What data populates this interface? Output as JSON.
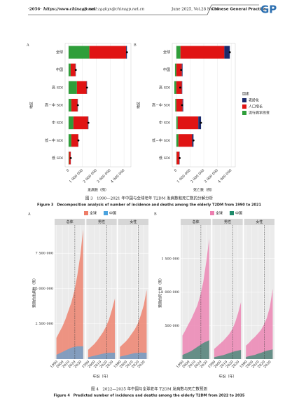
{
  "header": {
    "page": "·2056·",
    "website": "https://www.chinagp.net",
    "email": "E-mail:zgqkyx@chinagp.net.cn",
    "issue": "June 2025, Vol.28 No.16",
    "journal": "Chinese General Practice",
    "logo": "GP"
  },
  "figure3": {
    "caption_cn": "图 3　1990—2021 年中国与全球老年 T2DM 发病数和死亡数的分解分析",
    "caption_en": "Figure 3　Decomposition analysis of number of incidence and deaths among the elderly T2DM from 1990 to 2021"
  },
  "figure4": {
    "caption_cn": "图 4　2022—2035 年中国与全球老年 T2DM 发病数与死亡数预测",
    "caption_en": "Figure 4　Predicted number of incidence and deaths among the elderly T2DM from 2022 to 2035"
  },
  "chart_data": [
    {
      "type": "stacked_bar_h",
      "panel": "A",
      "categories": [
        "全球",
        "中国",
        "高 SDI",
        "高－中 SDI",
        "中 SDI",
        "低－中 SDI",
        "低 SDI"
      ],
      "series": [
        {
          "color": "#1b2a6b",
          "values": [
            60000,
            20000,
            30000,
            20000,
            30000,
            10000,
            10000
          ]
        },
        {
          "color": "#e01414",
          "values": [
            2650000,
            350000,
            700000,
            450000,
            1050000,
            500000,
            120000
          ]
        },
        {
          "color": "#2f9e3a",
          "values": [
            1500000,
            150000,
            600000,
            200000,
            350000,
            200000,
            30000
          ]
        }
      ],
      "totals": [
        4210000,
        520000,
        1330000,
        670000,
        1430000,
        710000,
        160000
      ],
      "xlim": [
        -250000,
        4500000
      ],
      "xticks": [
        0,
        {
          "value": 1000000,
          "label": "1 000 000"
        },
        {
          "value": 2000000,
          "label": "2 000 000"
        },
        {
          "value": 3000000,
          "label": "3 000 000"
        },
        {
          "value": 4000000,
          "label": "4 000 000"
        }
      ],
      "xlabel": "发病数（例）",
      "ylabel": "地区",
      "legend": false
    },
    {
      "type": "stacked_bar_h",
      "panel": "B",
      "categories": [
        "全球",
        "中国",
        "高 SDI",
        "高－中 SDI",
        "中 SDI",
        "低－中 SDI",
        "低 SDI"
      ],
      "series": [
        {
          "name": "老龄化",
          "color": "#1b2a6b",
          "values": [
            400000,
            50000,
            30000,
            50000,
            200000,
            100000,
            20000
          ]
        },
        {
          "name": "人口增长",
          "color": "#e01414",
          "values": [
            3200000,
            400000,
            400000,
            450000,
            1500000,
            1000000,
            200000
          ]
        },
        {
          "name": "流行病学改变",
          "color": "#2f9e3a",
          "values": [
            300000,
            -100000,
            -150000,
            -80000,
            100000,
            150000,
            20000
          ]
        }
      ],
      "totals": [
        3900000,
        350000,
        280000,
        420000,
        1800000,
        1250000,
        240000
      ],
      "xlim": [
        -300000,
        4300000
      ],
      "xticks": [
        0,
        {
          "value": 1000000,
          "label": "1 000 000"
        },
        {
          "value": 2000000,
          "label": "2 000 000"
        },
        {
          "value": 3000000,
          "label": "3 000 000"
        },
        {
          "value": 4000000,
          "label": "4 000 000"
        }
      ],
      "xlabel": "死亡数（例）",
      "ylabel": "地区",
      "legend": true,
      "legend_title": "因素"
    },
    {
      "type": "area",
      "panel": "A",
      "facets": [
        "总体",
        "男性",
        "女性"
      ],
      "x": [
        1990,
        1995,
        2000,
        2005,
        2010,
        2015,
        2020,
        2025,
        2030,
        2035
      ],
      "series": [
        {
          "name": "全球",
          "color": "#ee7d68",
          "values": [
            [
              1500000,
              1900000,
              2300000,
              2800000,
              3400000,
              4000000,
              4800000,
              5900000,
              7300000,
              9200000
            ],
            [
              650000,
              850000,
              1050000,
              1300000,
              1600000,
              1900000,
              2300000,
              2800000,
              3500000,
              4300000
            ],
            [
              850000,
              1050000,
              1250000,
              1500000,
              1800000,
              2100000,
              2500000,
              3100000,
              3800000,
              4900000
            ]
          ]
        },
        {
          "name": "中国",
          "color": "#4aa3df",
          "values": [
            [
              300000,
              400000,
              500000,
              600000,
              700000,
              800000,
              850000,
              900000,
              900000,
              900000
            ],
            [
              130000,
              180000,
              230000,
              280000,
              330000,
              380000,
              420000,
              440000,
              450000,
              450000
            ],
            [
              170000,
              220000,
              270000,
              320000,
              370000,
              420000,
              430000,
              460000,
              450000,
              450000
            ]
          ]
        }
      ],
      "reference_x": 2021,
      "xlim": [
        1987,
        2038
      ],
      "xticks": [
        1990,
        2000,
        2010,
        2020,
        2030
      ],
      "ylim": [
        0,
        9500000
      ],
      "yticks": [
        {
          "value": 2500000,
          "label": "2 500 000"
        },
        {
          "value": 5000000,
          "label": "5 000 000"
        },
        {
          "value": 7500000,
          "label": "7 500 000"
        }
      ],
      "xlabel": "年份（年）",
      "ylabel": "预测的发病数（例）"
    },
    {
      "type": "area",
      "panel": "B",
      "facets": [
        "总体",
        "男性",
        "女性"
      ],
      "x": [
        1990,
        1995,
        2000,
        2005,
        2010,
        2015,
        2020,
        2025,
        2030,
        2035
      ],
      "series": [
        {
          "name": "全球",
          "color": "#ec7fb0",
          "values": [
            [
              350000,
              430000,
              520000,
              600000,
              700000,
              800000,
              950000,
              1150000,
              1450000,
              1800000
            ],
            [
              150000,
              190000,
              230000,
              270000,
              320000,
              370000,
              440000,
              540000,
              680000,
              850000
            ],
            [
              200000,
              240000,
              290000,
              330000,
              380000,
              430000,
              510000,
              610000,
              770000,
              1050000
            ]
          ]
        },
        {
          "name": "中国",
          "color": "#1e8a6a",
          "values": [
            [
              60000,
              80000,
              100000,
              120000,
              150000,
              180000,
              210000,
              240000,
              260000,
              280000
            ],
            [
              28000,
              38000,
              48000,
              58000,
              72000,
              88000,
              102000,
              116000,
              126000,
              136000
            ],
            [
              32000,
              42000,
              52000,
              62000,
              78000,
              92000,
              108000,
              124000,
              134000,
              144000
            ]
          ]
        }
      ],
      "reference_x": 2021,
      "xlim": [
        1987,
        2038
      ],
      "xticks": [
        1990,
        2000,
        2010,
        2020,
        2030
      ],
      "ylim": [
        0,
        2000000
      ],
      "yticks": [
        {
          "value": 500000,
          "label": "500 000"
        },
        {
          "value": 1000000,
          "label": "1 000 000"
        },
        {
          "value": 1500000,
          "label": "1 500 000"
        }
      ],
      "xlabel": "年份（年）",
      "ylabel": "预测的死亡数（例）"
    }
  ]
}
